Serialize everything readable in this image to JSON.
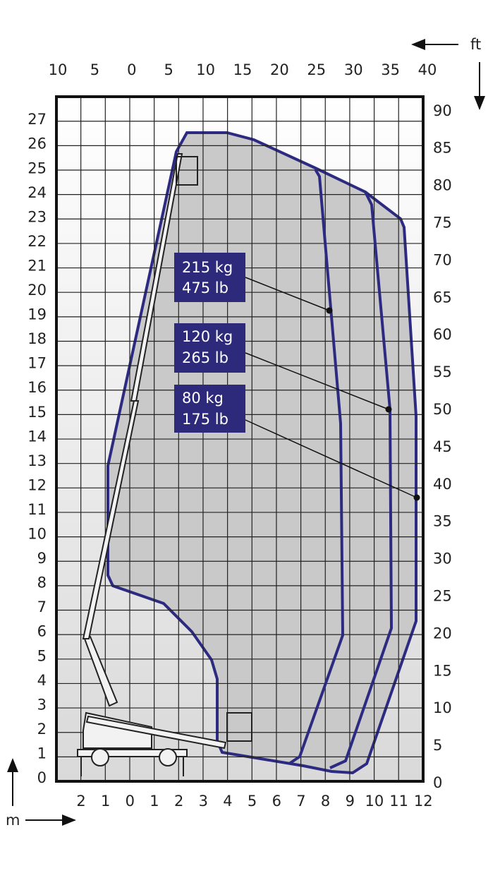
{
  "axes": {
    "x_m": [
      2,
      1,
      0,
      1,
      2,
      3,
      4,
      5,
      6,
      7,
      8,
      9,
      10,
      11,
      12
    ],
    "y_m": [
      0,
      1,
      2,
      3,
      4,
      5,
      6,
      7,
      8,
      9,
      10,
      11,
      12,
      13,
      14,
      15,
      16,
      17,
      18,
      19,
      20,
      21,
      22,
      23,
      24,
      25,
      26,
      27
    ],
    "x_ft": [
      10,
      5,
      0,
      5,
      10,
      15,
      20,
      25,
      30,
      35,
      40
    ],
    "y_ft": [
      0,
      5,
      10,
      15,
      20,
      25,
      30,
      35,
      40,
      45,
      50,
      55,
      60,
      65,
      70,
      75,
      80,
      85,
      90
    ],
    "unit_m": "m",
    "unit_ft": "ft"
  },
  "loads": [
    {
      "kg": "215 kg",
      "lb": "475 lb"
    },
    {
      "kg": "120 kg",
      "lb": "265 lb"
    },
    {
      "kg": "80 kg",
      "lb": "175 lb"
    }
  ]
}
